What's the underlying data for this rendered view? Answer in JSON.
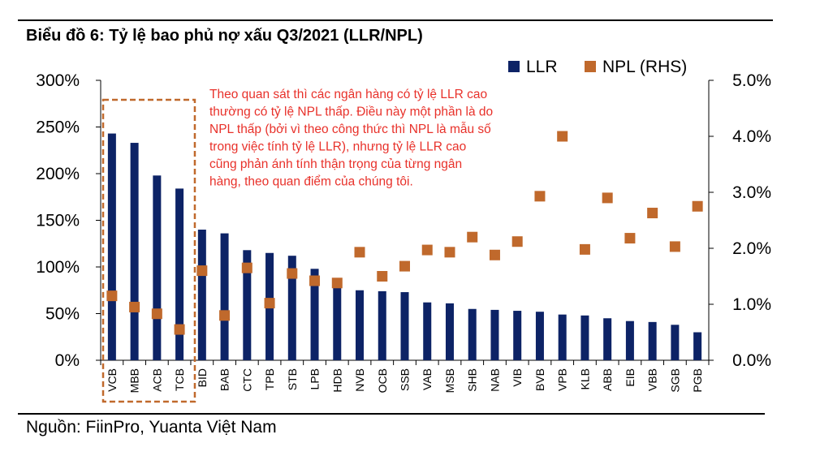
{
  "title": "Biểu đồ 6: Tỷ lệ bao phủ nợ xấu Q3/2021 (LLR/NPL)",
  "source": "Nguồn: FiinPro, Yuanta Việt Nam",
  "annotation": {
    "lines": [
      "Theo quan sát thì các ngân hàng có tỷ lệ LLR cao",
      "thường có tỷ lệ NPL thấp. Điều này một phần là do",
      "NPL thấp (bởi vì theo công thức thì NPL là mẫu số",
      "trong việc tính tỷ lệ LLR), nhưng tỷ lệ LLR cao",
      "cũng phản ánh tính thận trọng của từng ngân",
      "hàng, theo quan điểm của chúng tôi."
    ],
    "color": "#e8312a"
  },
  "chart_data": {
    "type": "bar",
    "categories": [
      "VCB",
      "MBB",
      "ACB",
      "TCB",
      "BID",
      "BAB",
      "CTC",
      "TPB",
      "STB",
      "LPB",
      "HDB",
      "NVB",
      "OCB",
      "SSB",
      "VAB",
      "MSB",
      "SHB",
      "NAB",
      "VIB",
      "BVB",
      "VPB",
      "KLB",
      "ABB",
      "EIB",
      "VBB",
      "SGB",
      "PGB"
    ],
    "series": [
      {
        "name": "LLR",
        "axis": "left",
        "type": "bar",
        "color": "#0d2366",
        "values": [
          243,
          233,
          198,
          184,
          140,
          136,
          118,
          115,
          112,
          98,
          80,
          75,
          74,
          73,
          62,
          61,
          55,
          54,
          53,
          52,
          49,
          48,
          45,
          42,
          41,
          38,
          30
        ]
      },
      {
        "name": "NPL (RHS)",
        "axis": "right",
        "type": "scatter",
        "color": "#c0692c",
        "values": [
          1.15,
          0.95,
          0.83,
          0.55,
          1.6,
          0.8,
          1.65,
          1.02,
          1.55,
          1.42,
          1.38,
          1.93,
          1.5,
          1.68,
          1.97,
          1.93,
          2.2,
          1.88,
          2.12,
          2.93,
          4.0,
          1.98,
          2.9,
          2.18,
          2.63,
          2.03,
          2.75
        ]
      }
    ],
    "y_left": {
      "ylim": [
        0,
        300
      ],
      "ticks": [
        "0%",
        "50%",
        "100%",
        "150%",
        "200%",
        "250%",
        "300%"
      ],
      "tick_values": [
        0,
        50,
        100,
        150,
        200,
        250,
        300
      ]
    },
    "y_right": {
      "ylim": [
        0,
        5
      ],
      "ticks": [
        "0.0%",
        "1.0%",
        "2.0%",
        "3.0%",
        "4.0%",
        "5.0%"
      ],
      "tick_values": [
        0,
        1,
        2,
        3,
        4,
        5
      ]
    },
    "legend": {
      "placement": "top-right",
      "items": [
        "LLR",
        "NPL (RHS)"
      ]
    },
    "highlight": {
      "categories": [
        "VCB",
        "MBB",
        "ACB",
        "TCB"
      ],
      "color": "#c0692c",
      "style": "dashed"
    },
    "grid": false
  }
}
